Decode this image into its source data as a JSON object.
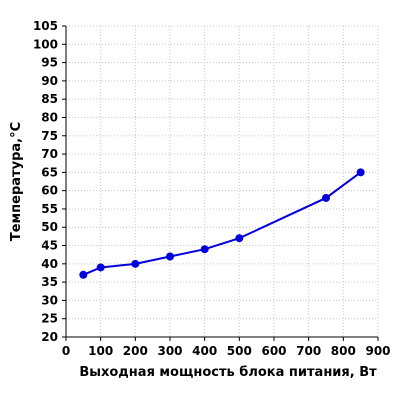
{
  "chart_data": {
    "type": "line",
    "title": "",
    "xlabel": "Выходная мощность блока питания, Вт",
    "ylabel": "Температура,°C",
    "xlim": [
      0,
      900
    ],
    "ylim": [
      20,
      105
    ],
    "x_ticks": [
      0,
      100,
      200,
      300,
      400,
      500,
      600,
      700,
      800,
      900
    ],
    "y_ticks": [
      20,
      25,
      30,
      35,
      40,
      45,
      50,
      55,
      60,
      65,
      70,
      75,
      80,
      85,
      90,
      95,
      100,
      105
    ],
    "grid": true,
    "legend": "none",
    "series": [
      {
        "color": "#0000dd",
        "x": [
          50,
          100,
          200,
          300,
          400,
          500,
          750,
          850
        ],
        "y": [
          37,
          39,
          40,
          42,
          44,
          47,
          58,
          65
        ]
      }
    ]
  }
}
